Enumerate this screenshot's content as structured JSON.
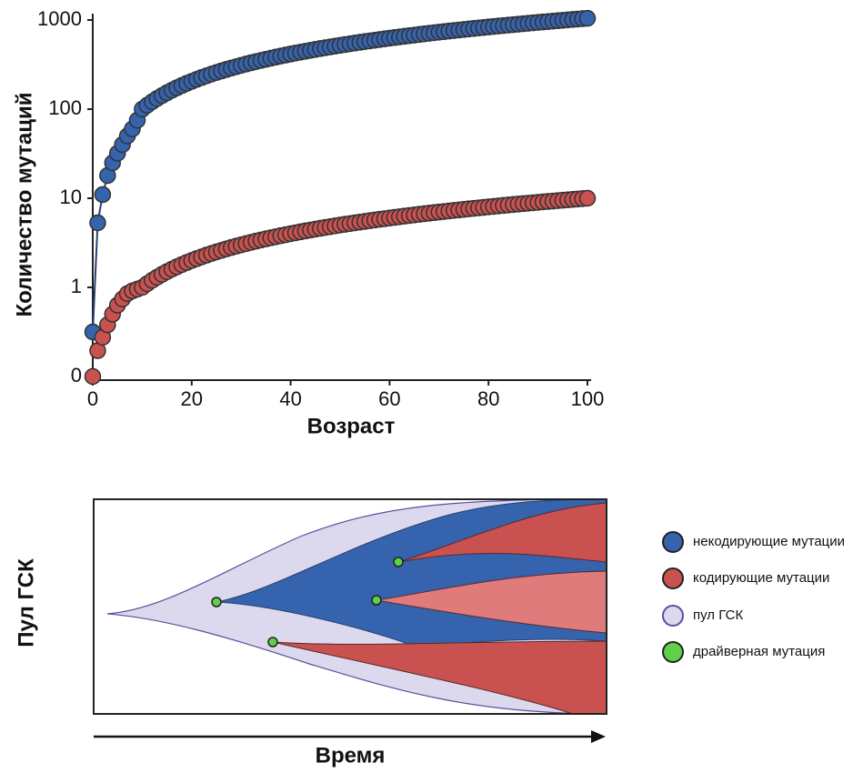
{
  "chart_data": {
    "type": "scatter",
    "y_label": "Количество мутаций",
    "x_label": "Возраст",
    "yscale": "symlog",
    "xlim": [
      0,
      100
    ],
    "xticks": [
      0,
      20,
      40,
      60,
      80,
      100
    ],
    "ylim": [
      0,
      1000
    ],
    "yticks": [
      0,
      1,
      10,
      100,
      1000
    ],
    "x": [
      0,
      1,
      2,
      3,
      4,
      5,
      6,
      7,
      8,
      9,
      10,
      11,
      12,
      13,
      14,
      15,
      16,
      17,
      18,
      19,
      20,
      21,
      22,
      23,
      24,
      25,
      26,
      27,
      28,
      29,
      30,
      31,
      32,
      33,
      34,
      35,
      36,
      37,
      38,
      39,
      40,
      41,
      42,
      43,
      44,
      45,
      46,
      47,
      48,
      49,
      50,
      51,
      52,
      53,
      54,
      55,
      56,
      57,
      58,
      59,
      60,
      61,
      62,
      63,
      64,
      65,
      66,
      67,
      68,
      69,
      70,
      71,
      72,
      73,
      74,
      75,
      76,
      77,
      78,
      79,
      80,
      81,
      82,
      83,
      84,
      85,
      86,
      87,
      88,
      89,
      90,
      91,
      92,
      93,
      94,
      95,
      96,
      97,
      98,
      99,
      100
    ],
    "series": [
      {
        "color": "#3563ad",
        "line": true,
        "values": [
          0.5,
          5.3,
          11,
          18,
          25,
          32,
          40,
          50,
          60,
          75,
          100,
          110.5,
          121,
          131.5,
          142,
          152.5,
          163,
          173.5,
          184,
          194.5,
          205,
          215.5,
          226,
          236.5,
          247,
          257.5,
          268,
          278.5,
          289,
          299.5,
          310,
          320.5,
          331,
          341.5,
          352,
          362.5,
          373,
          383.5,
          394,
          404.5,
          415,
          425.5,
          436,
          446.5,
          457,
          467.5,
          478,
          488.5,
          499,
          509.5,
          520,
          530.5,
          541,
          551.5,
          562,
          572.5,
          583,
          593.5,
          604,
          614.5,
          625,
          635.5,
          646,
          656.5,
          667,
          677.5,
          688,
          698.5,
          709,
          719.5,
          730,
          740.5,
          751,
          761.5,
          772,
          782.5,
          793,
          803.5,
          814,
          824.5,
          835,
          845.5,
          856,
          866.5,
          877,
          887.5,
          898,
          908.5,
          919,
          929.5,
          940,
          950.5,
          961,
          971.5,
          982,
          992.5,
          1003,
          1013.5,
          1024,
          1034.5,
          1045
        ]
      },
      {
        "color": "#c9514f",
        "line": false,
        "values": [
          0,
          0.29,
          0.44,
          0.58,
          0.7,
          0.8,
          0.87,
          0.93,
          0.96,
          0.98,
          1,
          1.1,
          1.2,
          1.3,
          1.4,
          1.5,
          1.6,
          1.7,
          1.8,
          1.9,
          2,
          2.1,
          2.2,
          2.3,
          2.4,
          2.5,
          2.6,
          2.7,
          2.8,
          2.9,
          3,
          3.1,
          3.2,
          3.3,
          3.4,
          3.5,
          3.6,
          3.7,
          3.8,
          3.9,
          4,
          4.1,
          4.2,
          4.3,
          4.4,
          4.5,
          4.6,
          4.7,
          4.8,
          4.9,
          5,
          5.1,
          5.2,
          5.3,
          5.4,
          5.5,
          5.6,
          5.7,
          5.8,
          5.9,
          6,
          6.1,
          6.2,
          6.3,
          6.4,
          6.5,
          6.6,
          6.7,
          6.8,
          6.9,
          7,
          7.1,
          7.2,
          7.3,
          7.4,
          7.5,
          7.6,
          7.7,
          7.8,
          7.9,
          8,
          8.1,
          8.2,
          8.3,
          8.4,
          8.5,
          8.6,
          8.7,
          8.8,
          8.9,
          9,
          9.1,
          9.2,
          9.3,
          9.4,
          9.5,
          9.6,
          9.7,
          9.8,
          9.9,
          10
        ]
      }
    ]
  },
  "diagram": {
    "y_label": "Пул ГСК",
    "x_label": "Время",
    "legend": [
      "некодирующие мутации",
      "кодирующие мутации",
      "пул ГСК",
      "драйверная мутация"
    ]
  }
}
